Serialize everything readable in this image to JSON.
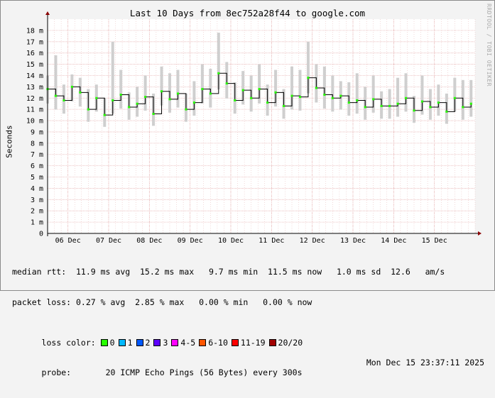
{
  "chart_data": {
    "type": "line",
    "title": "Last 10 Days from 8ec752a28f44 to google.com",
    "ylabel": "Seconds",
    "ylim": [
      0,
      0.019
    ],
    "yticks": [
      0,
      0.001,
      0.002,
      0.003,
      0.004,
      0.005,
      0.006,
      0.007,
      0.008,
      0.009,
      0.01,
      0.011,
      0.012,
      0.013,
      0.014,
      0.015,
      0.016,
      0.017,
      0.018
    ],
    "ytick_labels": [
      "0",
      "1 m",
      "2 m",
      "3 m",
      "4 m",
      "5 m",
      "6 m",
      "7 m",
      "8 m",
      "9 m",
      "10 m",
      "11 m",
      "12 m",
      "13 m",
      "14 m",
      "15 m",
      "16 m",
      "17 m",
      "18 m"
    ],
    "xtick_labels": [
      "06 Dec",
      "07 Dec",
      "08 Dec",
      "09 Dec",
      "10 Dec",
      "11 Dec",
      "12 Dec",
      "13 Dec",
      "14 Dec",
      "15 Dec"
    ],
    "xrange_days": [
      0,
      10.5
    ],
    "grid": true,
    "series": [
      {
        "name": "median rtt",
        "x_days": [
          0.0,
          0.2,
          0.4,
          0.6,
          0.8,
          1.0,
          1.2,
          1.4,
          1.6,
          1.8,
          2.0,
          2.2,
          2.4,
          2.6,
          2.8,
          3.0,
          3.2,
          3.4,
          3.6,
          3.8,
          4.0,
          4.2,
          4.4,
          4.6,
          4.8,
          5.0,
          5.2,
          5.4,
          5.6,
          5.8,
          6.0,
          6.2,
          6.4,
          6.6,
          6.8,
          7.0,
          7.2,
          7.4,
          7.6,
          7.8,
          8.0,
          8.2,
          8.4,
          8.6,
          8.8,
          9.0,
          9.2,
          9.4,
          9.6,
          9.8,
          10.0,
          10.2,
          10.4
        ],
        "values": [
          0.0128,
          0.0122,
          0.0118,
          0.013,
          0.0125,
          0.011,
          0.012,
          0.0105,
          0.0118,
          0.0123,
          0.0112,
          0.0115,
          0.0121,
          0.0106,
          0.0126,
          0.0119,
          0.0124,
          0.011,
          0.0116,
          0.0128,
          0.0124,
          0.0142,
          0.0133,
          0.0118,
          0.0127,
          0.012,
          0.0128,
          0.0116,
          0.0125,
          0.0113,
          0.0122,
          0.0121,
          0.0138,
          0.0129,
          0.0123,
          0.012,
          0.0122,
          0.0116,
          0.0118,
          0.0112,
          0.0119,
          0.0113,
          0.0113,
          0.0115,
          0.012,
          0.0109,
          0.0117,
          0.0112,
          0.0116,
          0.0108,
          0.012,
          0.0112,
          0.0115
        ],
        "smoke_max": [
          0.014,
          0.0158,
          0.0132,
          0.0141,
          0.0138,
          0.0128,
          0.0132,
          0.012,
          0.017,
          0.0145,
          0.0125,
          0.013,
          0.014,
          0.0124,
          0.0148,
          0.0142,
          0.0145,
          0.0124,
          0.0135,
          0.015,
          0.0146,
          0.0178,
          0.0152,
          0.0134,
          0.0144,
          0.014,
          0.015,
          0.0132,
          0.0145,
          0.0128,
          0.0148,
          0.0145,
          0.017,
          0.015,
          0.0148,
          0.014,
          0.0135,
          0.0134,
          0.0142,
          0.013,
          0.014,
          0.0126,
          0.0128,
          0.0138,
          0.0142,
          0.0122,
          0.014,
          0.0128,
          0.0132,
          0.0124,
          0.0138,
          0.0136,
          0.0136
        ]
      }
    ],
    "stats": {
      "median_rtt": "median rtt:  11.9 ms avg  15.2 ms max   9.7 ms min  11.5 ms now   1.0 ms sd  12.6   am/s",
      "packet_loss": "packet loss: 0.27 % avg  2.85 % max   0.00 % min   0.00 % now"
    }
  },
  "legend": {
    "loss_color_label": "loss color:",
    "items": [
      {
        "label": "0",
        "color": "#26ff00"
      },
      {
        "label": "1",
        "color": "#00b8ff"
      },
      {
        "label": "2",
        "color": "#0059ff"
      },
      {
        "label": "3",
        "color": "#5e00ff"
      },
      {
        "label": "4-5",
        "color": "#ff00ff"
      },
      {
        "label": "6-10",
        "color": "#ff5500"
      },
      {
        "label": "11-19",
        "color": "#ff0000"
      },
      {
        "label": "20/20",
        "color": "#a10000"
      }
    ],
    "probe_label": "probe:",
    "probe_text": "20 ICMP Echo Pings (56 Bytes) every 300s",
    "date": "Mon Dec 15 23:37:11 2025"
  },
  "credit": "RRDTOOL / TOBI OETIKER",
  "colors": {
    "grid": "#e7b4b4",
    "smoke": "#cfcfcf",
    "line": "#000000",
    "plot_bg": "#ffffff",
    "axis": "#000000",
    "arrow": "#8b0000"
  }
}
